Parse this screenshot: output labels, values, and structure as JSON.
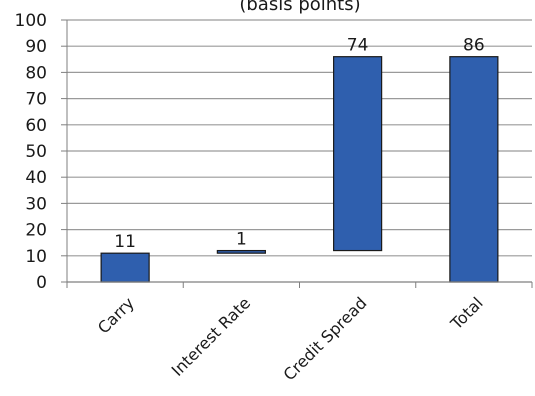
{
  "chart_data": {
    "type": "bar",
    "title": "(basis points)",
    "categories": [
      "Carry",
      "Interest Rate",
      "Credit Spread",
      "Total"
    ],
    "bars": [
      {
        "base": 0,
        "value": 11,
        "label": "11"
      },
      {
        "base": 11,
        "value": 1,
        "label": "1"
      },
      {
        "base": 12,
        "value": 74,
        "label": "74"
      },
      {
        "base": 0,
        "value": 86,
        "label": "86"
      }
    ],
    "ylim": [
      0,
      100
    ],
    "yticks": [
      0,
      10,
      20,
      30,
      40,
      50,
      60,
      70,
      80,
      90,
      100
    ],
    "xlabel": "",
    "ylabel": "",
    "grid": true,
    "colors": {
      "bar_fill": "#2f5fae",
      "bar_stroke": "#1a1a1a",
      "grid": "#9a9a9a",
      "axis": "#7f7f7f"
    }
  }
}
